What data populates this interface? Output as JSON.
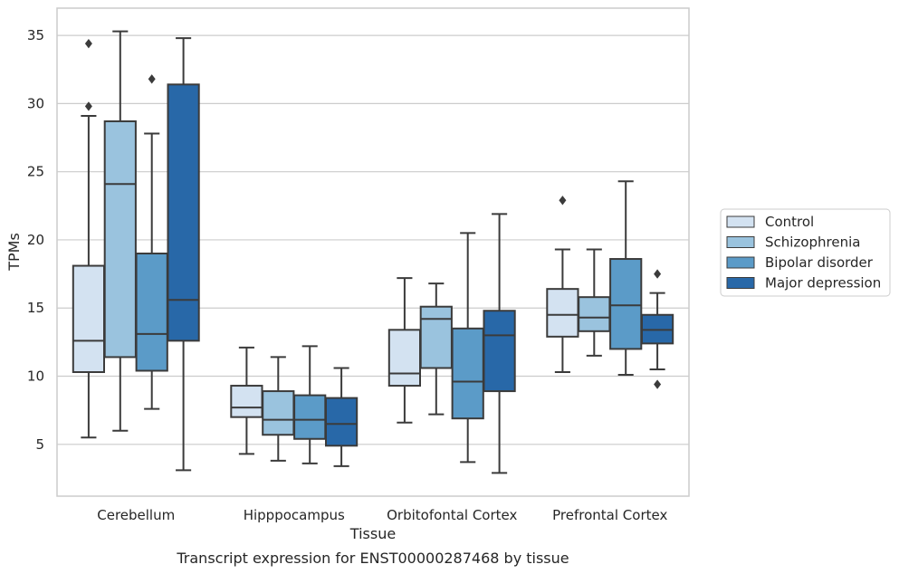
{
  "chart_data": {
    "type": "box",
    "title": "Transcript expression for ENST00000287468 by tissue",
    "xlabel": "Tissue",
    "ylabel": "TPMs",
    "ylim": [
      1.2,
      37
    ],
    "yticks": [
      5,
      10,
      15,
      20,
      25,
      30,
      35
    ],
    "grid": "horizontal",
    "legend_position": "right",
    "categories": [
      "Cerebellum",
      "Hipppocampus",
      "Orbitofontal Cortex",
      "Prefrontal Cortex"
    ],
    "series": [
      {
        "name": "Control",
        "color": "#d3e2f1",
        "boxes": [
          {
            "whisker_low": 5.5,
            "q1": 10.3,
            "median": 12.6,
            "q3": 18.1,
            "whisker_high": 29.1,
            "outliers": [
              29.8,
              34.4
            ]
          },
          {
            "whisker_low": 4.3,
            "q1": 7.0,
            "median": 7.7,
            "q3": 9.3,
            "whisker_high": 12.1,
            "outliers": []
          },
          {
            "whisker_low": 6.6,
            "q1": 9.3,
            "median": 10.2,
            "q3": 13.4,
            "whisker_high": 17.2,
            "outliers": []
          },
          {
            "whisker_low": 10.3,
            "q1": 12.9,
            "median": 14.5,
            "q3": 16.4,
            "whisker_high": 19.3,
            "outliers": [
              22.9
            ]
          }
        ]
      },
      {
        "name": "Schizophrenia",
        "color": "#9ac3de",
        "boxes": [
          {
            "whisker_low": 6.0,
            "q1": 11.4,
            "median": 24.1,
            "q3": 28.7,
            "whisker_high": 35.3,
            "outliers": []
          },
          {
            "whisker_low": 3.8,
            "q1": 5.7,
            "median": 6.8,
            "q3": 8.9,
            "whisker_high": 11.4,
            "outliers": []
          },
          {
            "whisker_low": 7.2,
            "q1": 10.6,
            "median": 14.2,
            "q3": 15.1,
            "whisker_high": 16.8,
            "outliers": []
          },
          {
            "whisker_low": 11.5,
            "q1": 13.3,
            "median": 14.3,
            "q3": 15.8,
            "whisker_high": 19.3,
            "outliers": []
          }
        ]
      },
      {
        "name": "Bipolar disorder",
        "color": "#5b9bc8",
        "boxes": [
          {
            "whisker_low": 7.6,
            "q1": 10.4,
            "median": 13.1,
            "q3": 19.0,
            "whisker_high": 27.8,
            "outliers": [
              31.8
            ]
          },
          {
            "whisker_low": 3.6,
            "q1": 5.4,
            "median": 6.8,
            "q3": 8.6,
            "whisker_high": 12.2,
            "outliers": []
          },
          {
            "whisker_low": 3.7,
            "q1": 6.9,
            "median": 9.6,
            "q3": 13.5,
            "whisker_high": 20.5,
            "outliers": []
          },
          {
            "whisker_low": 10.1,
            "q1": 12.0,
            "median": 15.2,
            "q3": 18.6,
            "whisker_high": 24.3,
            "outliers": []
          }
        ]
      },
      {
        "name": "Major depression",
        "color": "#2868a8",
        "boxes": [
          {
            "whisker_low": 3.1,
            "q1": 12.6,
            "median": 15.6,
            "q3": 31.4,
            "whisker_high": 34.8,
            "outliers": []
          },
          {
            "whisker_low": 3.4,
            "q1": 4.9,
            "median": 6.5,
            "q3": 8.4,
            "whisker_high": 10.6,
            "outliers": []
          },
          {
            "whisker_low": 2.9,
            "q1": 8.9,
            "median": 13.0,
            "q3": 14.8,
            "whisker_high": 21.9,
            "outliers": []
          },
          {
            "whisker_low": 10.5,
            "q1": 12.4,
            "median": 13.4,
            "q3": 14.5,
            "whisker_high": 16.1,
            "outliers": [
              9.4,
              17.5
            ]
          }
        ]
      }
    ]
  }
}
